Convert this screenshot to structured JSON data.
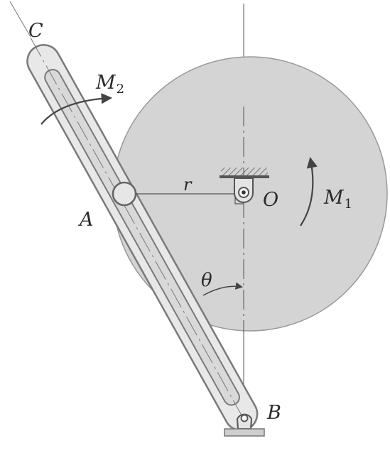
{
  "figure": {
    "description_type": "mechanism-diagram",
    "labels": {
      "point_c": "C",
      "point_a": "A",
      "point_b": "B",
      "point_o": "O",
      "radius": "r",
      "angle": "θ",
      "moment_1": "M",
      "moment_1_sub": "1",
      "moment_2": "M",
      "moment_2_sub": "2"
    }
  }
}
